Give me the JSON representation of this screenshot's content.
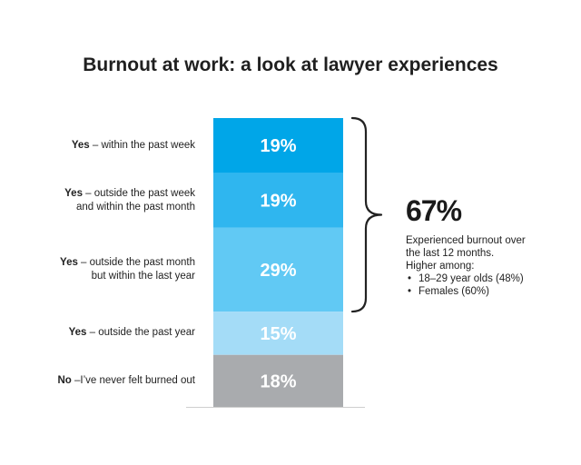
{
  "chart_data": {
    "type": "bar",
    "stacked": true,
    "orientation": "vertical",
    "title": "Burnout at work: a look at lawyer experiences",
    "categories": [
      {
        "strong": "Yes",
        "rest": " – within the past week"
      },
      {
        "strong": "Yes",
        "rest": " – outside the past week\nand within the past month"
      },
      {
        "strong": "Yes",
        "rest": " – outside the past month\nbut within the last year"
      },
      {
        "strong": "Yes",
        "rest": " – outside the past year"
      },
      {
        "strong": "No",
        "rest": " –I’ve never felt burned out"
      }
    ],
    "values": [
      19,
      19,
      29,
      15,
      18
    ],
    "value_labels": [
      "19%",
      "19%",
      "29%",
      "15%",
      "18%"
    ],
    "colors": [
      "#00a6e8",
      "#2fb6ef",
      "#61c9f4",
      "#a4dcf7",
      "#a9abae"
    ],
    "callout": {
      "value": "67%",
      "text": [
        "Experienced burnout over",
        "the last 12 months.",
        "Higher among:"
      ],
      "bullets": [
        "18–29 year olds (48%)",
        "Females (60%)"
      ]
    }
  }
}
